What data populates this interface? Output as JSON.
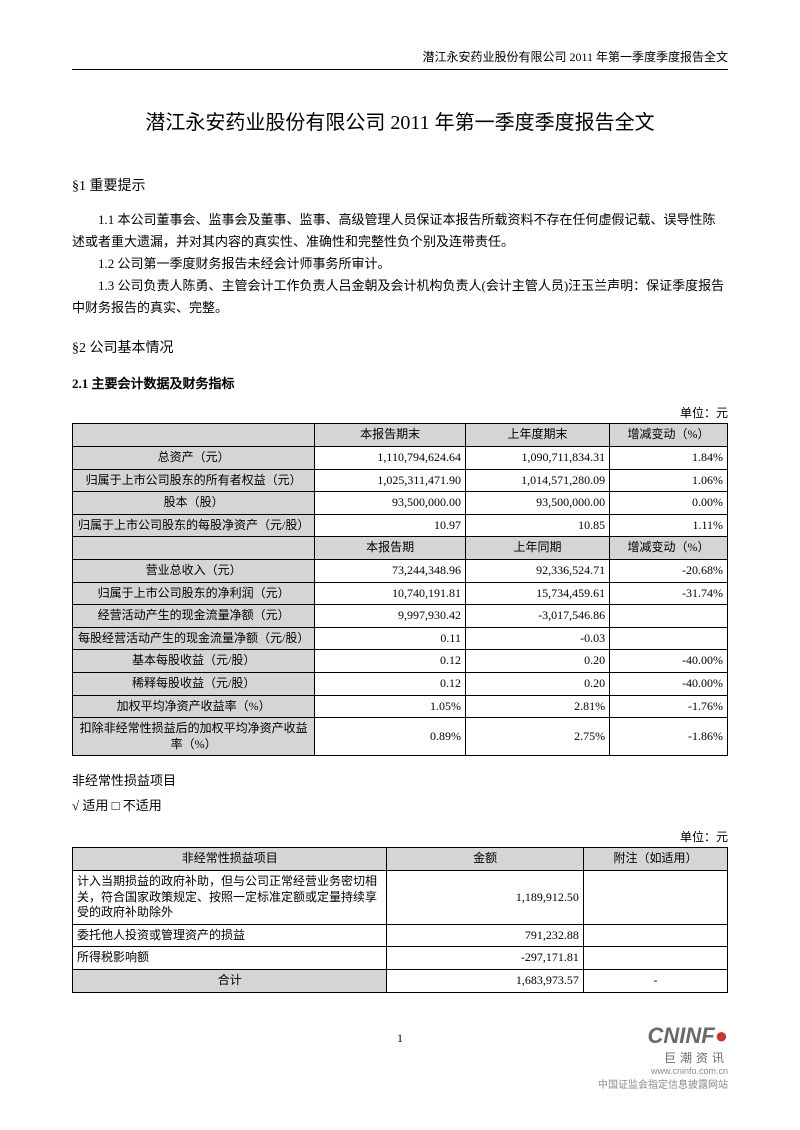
{
  "header": {
    "running_head": "潜江永安药业股份有限公司 2011 年第一季度季度报告全文"
  },
  "title": "潜江永安药业股份有限公司  2011 年第一季度季度报告全文",
  "s1": {
    "heading": "§1 重要提示",
    "p1": "1.1 本公司董事会、监事会及董事、监事、高级管理人员保证本报告所载资料不存在任何虚假记载、误导性陈述或者重大遗漏，并对其内容的真实性、准确性和完整性负个别及连带责任。",
    "p2": "1.2 公司第一季度财务报告未经会计师事务所审计。",
    "p3": "1.3 公司负责人陈勇、主管会计工作负责人吕金朝及会计机构负责人(会计主管人员)汪玉兰声明：保证季度报告中财务报告的真实、完整。"
  },
  "s2": {
    "heading": "§2  公司基本情况",
    "sub": "2.1 主要会计数据及财务指标",
    "unit": "单位：元"
  },
  "t1": {
    "head1": [
      "",
      "本报告期末",
      "上年度期末",
      "增减变动（%）"
    ],
    "rows1": [
      {
        "l": "总资产（元）",
        "a": "1,110,794,624.64",
        "b": "1,090,711,834.31",
        "c": "1.84%"
      },
      {
        "l": "归属于上市公司股东的所有者权益（元）",
        "a": "1,025,311,471.90",
        "b": "1,014,571,280.09",
        "c": "1.06%"
      },
      {
        "l": "股本（股）",
        "a": "93,500,000.00",
        "b": "93,500,000.00",
        "c": "0.00%"
      },
      {
        "l": "归属于上市公司股东的每股净资产（元/股）",
        "a": "10.97",
        "b": "10.85",
        "c": "1.11%"
      }
    ],
    "head2": [
      "",
      "本报告期",
      "上年同期",
      "增减变动（%）"
    ],
    "rows2": [
      {
        "l": "营业总收入（元）",
        "a": "73,244,348.96",
        "b": "92,336,524.71",
        "c": "-20.68%"
      },
      {
        "l": "归属于上市公司股东的净利润（元）",
        "a": "10,740,191.81",
        "b": "15,734,459.61",
        "c": "-31.74%"
      },
      {
        "l": "经营活动产生的现金流量净额（元）",
        "a": "9,997,930.42",
        "b": "-3,017,546.86",
        "c": ""
      },
      {
        "l": "每股经营活动产生的现金流量净额（元/股）",
        "a": "0.11",
        "b": "-0.03",
        "c": ""
      },
      {
        "l": "基本每股收益（元/股）",
        "a": "0.12",
        "b": "0.20",
        "c": "-40.00%"
      },
      {
        "l": "稀释每股收益（元/股）",
        "a": "0.12",
        "b": "0.20",
        "c": "-40.00%"
      },
      {
        "l": "加权平均净资产收益率（%）",
        "a": "1.05%",
        "b": "2.81%",
        "c": "-1.76%"
      },
      {
        "l": "扣除非经常性损益后的加权平均净资产收益率（%）",
        "a": "0.89%",
        "b": "2.75%",
        "c": "-1.86%"
      }
    ],
    "colw": [
      "37%",
      "23%",
      "22%",
      "18%"
    ]
  },
  "nr": {
    "title": "非经常性损益项目",
    "apply": "√ 适用 □ 不适用",
    "unit": "单位：元"
  },
  "t2": {
    "head": [
      "非经常性损益项目",
      "金额",
      "附注（如适用）"
    ],
    "rows": [
      {
        "l": "计入当期损益的政府补助，但与公司正常经营业务密切相关，符合国家政策规定、按照一定标准定额或定量持续享受的政府补助除外",
        "a": "1,189,912.50",
        "n": ""
      },
      {
        "l": "委托他人投资或管理资产的损益",
        "a": "791,232.88",
        "n": ""
      },
      {
        "l": "所得税影响额",
        "a": "-297,171.81",
        "n": ""
      }
    ],
    "total": {
      "l": "合计",
      "a": "1,683,973.57",
      "n": "-"
    },
    "colw": [
      "48%",
      "30%",
      "22%"
    ]
  },
  "footer": {
    "page": "1",
    "logo_en": "CNINF",
    "logo_dot": "●",
    "logo_cn": "巨潮资讯",
    "url": "www.cninfo.com.cn",
    "sub": "中国证监会指定信息披露网站"
  }
}
